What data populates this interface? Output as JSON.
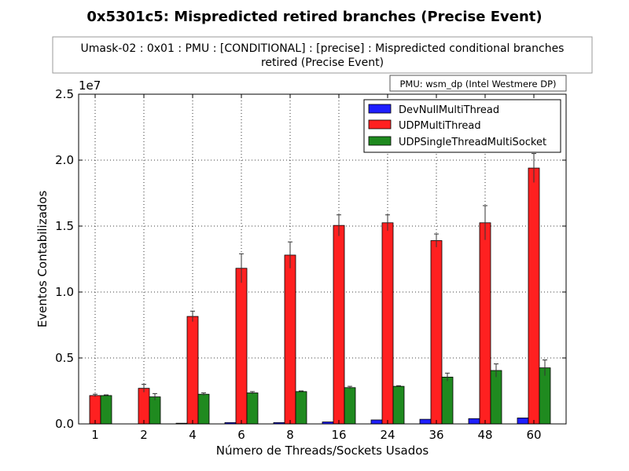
{
  "chart_data": {
    "type": "bar",
    "title": "0x5301c5: Mispredicted retired branches (Precise Event)",
    "subtitle_lines": [
      "Umask-02 : 0x01 : PMU : [CONDITIONAL] : [precise] : Mispredicted conditional branches",
      "retired (Precise Event)"
    ],
    "pmu_label": "PMU: wsm_dp (Intel Westmere DP)",
    "xlabel": "Número de Threads/Sockets Usados",
    "ylabel": "Eventos Contabilizados",
    "y_multiplier": "1e7",
    "ylim": [
      0,
      25000000
    ],
    "yticks": [
      0,
      5000000,
      10000000,
      15000000,
      20000000,
      25000000
    ],
    "ytick_labels": [
      "0.0",
      "0.5",
      "1.0",
      "1.5",
      "2.0",
      "2.5"
    ],
    "grid": true,
    "legend_position": "top-right",
    "categories": [
      "1",
      "2",
      "4",
      "6",
      "8",
      "16",
      "24",
      "36",
      "48",
      "60"
    ],
    "series": [
      {
        "name": "DevNullMultiThread",
        "color": "#1f1fff",
        "values": [
          0,
          0,
          50000,
          100000,
          100000,
          150000,
          300000,
          350000,
          400000,
          450000
        ],
        "errors": [
          0,
          0,
          0,
          0,
          0,
          0,
          0,
          0,
          0,
          0
        ]
      },
      {
        "name": "UDPMultiThread",
        "color": "#ff2020",
        "values": [
          2150000,
          2700000,
          8150000,
          11800000,
          12800000,
          15050000,
          15250000,
          13900000,
          15250000,
          19400000
        ],
        "errors": [
          100000,
          300000,
          400000,
          1100000,
          1000000,
          800000,
          600000,
          500000,
          1300000,
          1100000
        ]
      },
      {
        "name": "UDPSingleThreadMultiSocket",
        "color": "#1f8a1f",
        "values": [
          2150000,
          2050000,
          2250000,
          2350000,
          2450000,
          2750000,
          2850000,
          3550000,
          4050000,
          4250000
        ],
        "errors": [
          50000,
          250000,
          100000,
          100000,
          50000,
          100000,
          50000,
          300000,
          500000,
          600000
        ]
      }
    ]
  }
}
